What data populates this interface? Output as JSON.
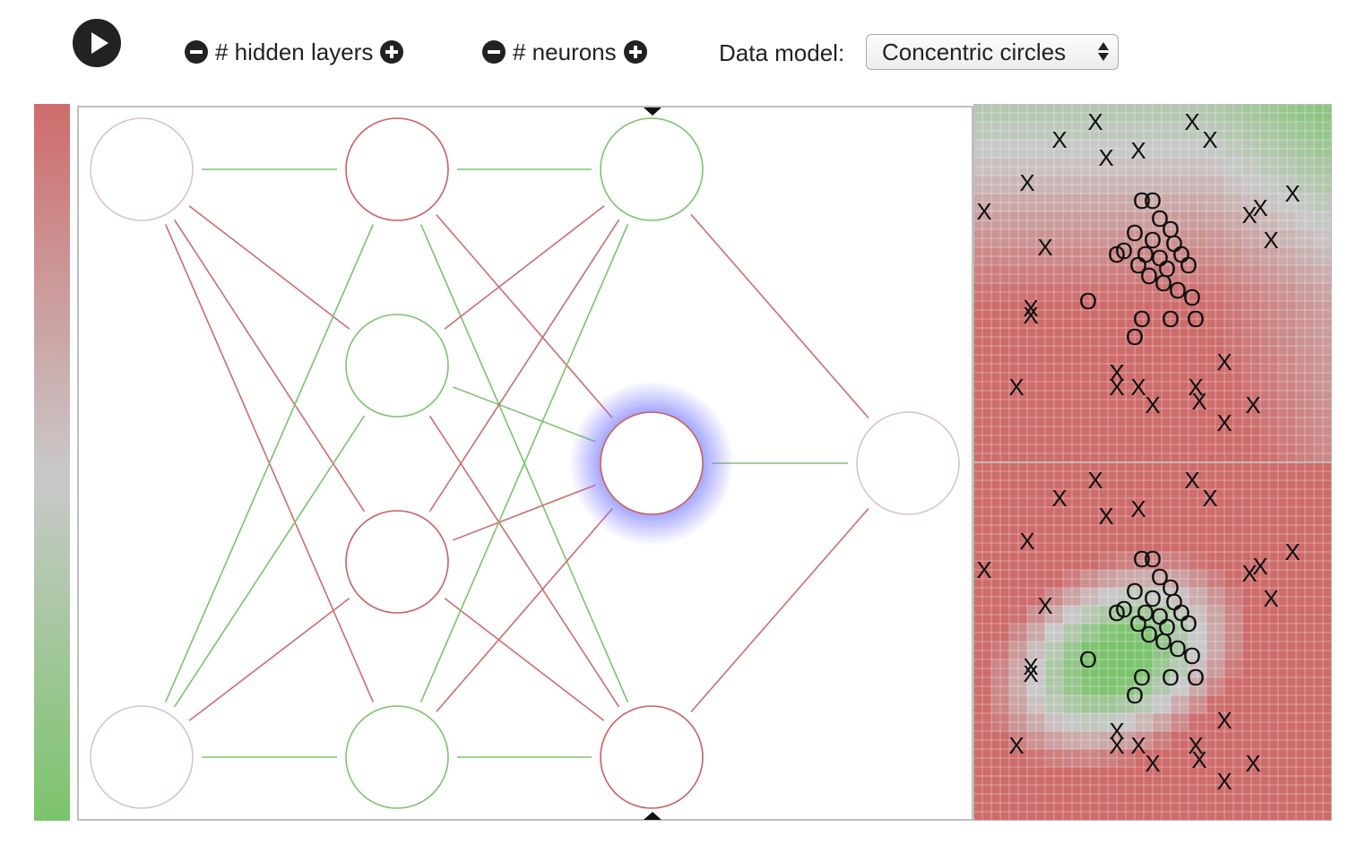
{
  "toolbar": {
    "play_icon": "play-icon",
    "layers_label": "# hidden layers",
    "neurons_label": "# neurons",
    "data_model_label": "Data model:",
    "data_model_value": "Concentric circles"
  },
  "colors": {
    "positive": "#7bc46c",
    "negative": "#ce6c6c",
    "neutral": "#c9c9c9",
    "highlight": "#7d7dff"
  },
  "network": {
    "layers": [
      [
        {
          "color": "#d8c4c6"
        },
        {
          "color": "#d8c4c6"
        }
      ],
      [
        {
          "color": "#c9615f"
        },
        {
          "color": "#7bc46c"
        },
        {
          "color": "#c9615f"
        },
        {
          "color": "#7bc46c"
        }
      ],
      [
        {
          "color": "#7bc46c"
        },
        {
          "color": "#c9615f",
          "highlight": true
        },
        {
          "color": "#c9615f"
        }
      ],
      [
        {
          "color": "#d8c4c6"
        }
      ]
    ],
    "edges": [
      {
        "from": [
          0,
          0
        ],
        "to": [
          1,
          0
        ],
        "sign": "pos"
      },
      {
        "from": [
          0,
          0
        ],
        "to": [
          1,
          1
        ],
        "sign": "neg"
      },
      {
        "from": [
          0,
          0
        ],
        "to": [
          1,
          2
        ],
        "sign": "neg"
      },
      {
        "from": [
          0,
          0
        ],
        "to": [
          1,
          3
        ],
        "sign": "neg"
      },
      {
        "from": [
          0,
          1
        ],
        "to": [
          1,
          0
        ],
        "sign": "pos"
      },
      {
        "from": [
          0,
          1
        ],
        "to": [
          1,
          1
        ],
        "sign": "pos"
      },
      {
        "from": [
          0,
          1
        ],
        "to": [
          1,
          2
        ],
        "sign": "neg"
      },
      {
        "from": [
          0,
          1
        ],
        "to": [
          1,
          3
        ],
        "sign": "pos"
      },
      {
        "from": [
          1,
          0
        ],
        "to": [
          2,
          0
        ],
        "sign": "pos"
      },
      {
        "from": [
          1,
          0
        ],
        "to": [
          2,
          1
        ],
        "sign": "neg"
      },
      {
        "from": [
          1,
          0
        ],
        "to": [
          2,
          2
        ],
        "sign": "pos"
      },
      {
        "from": [
          1,
          1
        ],
        "to": [
          2,
          0
        ],
        "sign": "neg"
      },
      {
        "from": [
          1,
          1
        ],
        "to": [
          2,
          1
        ],
        "sign": "pos"
      },
      {
        "from": [
          1,
          1
        ],
        "to": [
          2,
          2
        ],
        "sign": "neg"
      },
      {
        "from": [
          1,
          2
        ],
        "to": [
          2,
          0
        ],
        "sign": "neg"
      },
      {
        "from": [
          1,
          2
        ],
        "to": [
          2,
          1
        ],
        "sign": "neg"
      },
      {
        "from": [
          1,
          2
        ],
        "to": [
          2,
          2
        ],
        "sign": "neg"
      },
      {
        "from": [
          1,
          3
        ],
        "to": [
          2,
          0
        ],
        "sign": "pos"
      },
      {
        "from": [
          1,
          3
        ],
        "to": [
          2,
          1
        ],
        "sign": "neg"
      },
      {
        "from": [
          1,
          3
        ],
        "to": [
          2,
          2
        ],
        "sign": "pos"
      },
      {
        "from": [
          2,
          0
        ],
        "to": [
          3,
          0
        ],
        "sign": "neg"
      },
      {
        "from": [
          2,
          1
        ],
        "to": [
          3,
          0
        ],
        "sign": "pos"
      },
      {
        "from": [
          2,
          2
        ],
        "to": [
          3,
          0
        ],
        "sign": "neg"
      }
    ]
  },
  "samples": {
    "x": [
      [
        0.24,
        0.1
      ],
      [
        0.34,
        0.05
      ],
      [
        0.61,
        0.05
      ],
      [
        0.66,
        0.1
      ],
      [
        0.37,
        0.15
      ],
      [
        0.46,
        0.13
      ],
      [
        0.15,
        0.22
      ],
      [
        0.03,
        0.3
      ],
      [
        0.77,
        0.31
      ],
      [
        0.8,
        0.29
      ],
      [
        0.83,
        0.38
      ],
      [
        0.89,
        0.25
      ],
      [
        0.2,
        0.4
      ],
      [
        0.16,
        0.57
      ],
      [
        0.16,
        0.59
      ],
      [
        0.12,
        0.79
      ],
      [
        0.4,
        0.75
      ],
      [
        0.4,
        0.79
      ],
      [
        0.46,
        0.79
      ],
      [
        0.5,
        0.84
      ],
      [
        0.62,
        0.79
      ],
      [
        0.63,
        0.83
      ],
      [
        0.7,
        0.72
      ],
      [
        0.78,
        0.84
      ],
      [
        0.7,
        0.89
      ]
    ],
    "o": [
      [
        0.47,
        0.27
      ],
      [
        0.5,
        0.27
      ],
      [
        0.52,
        0.32
      ],
      [
        0.45,
        0.36
      ],
      [
        0.48,
        0.42
      ],
      [
        0.5,
        0.38
      ],
      [
        0.55,
        0.35
      ],
      [
        0.4,
        0.42
      ],
      [
        0.42,
        0.41
      ],
      [
        0.46,
        0.45
      ],
      [
        0.52,
        0.43
      ],
      [
        0.56,
        0.39
      ],
      [
        0.58,
        0.42
      ],
      [
        0.6,
        0.45
      ],
      [
        0.54,
        0.46
      ],
      [
        0.49,
        0.48
      ],
      [
        0.53,
        0.5
      ],
      [
        0.57,
        0.52
      ],
      [
        0.61,
        0.54
      ],
      [
        0.32,
        0.55
      ],
      [
        0.47,
        0.6
      ],
      [
        0.55,
        0.6
      ],
      [
        0.62,
        0.6
      ],
      [
        0.45,
        0.65
      ]
    ]
  },
  "heatmaps": {
    "top_desc": "Output decision map",
    "bottom_desc": "Hovered neuron activation map"
  }
}
